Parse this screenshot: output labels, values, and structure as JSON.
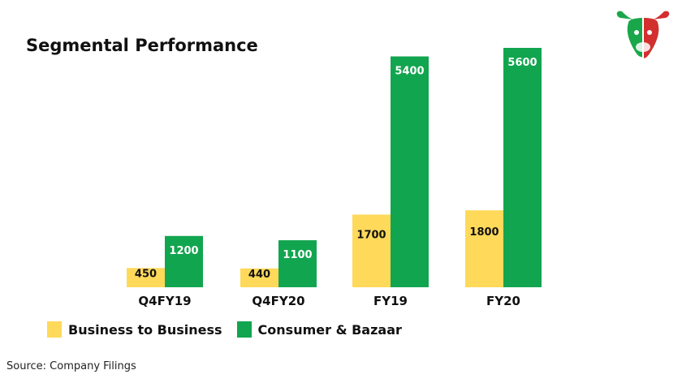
{
  "title": "Segmental Performance",
  "source": "Source: Company Filings",
  "logo": {
    "icon": "bull-head-logo-icon",
    "colors": [
      "#d32f2f",
      "#1aa64a"
    ]
  },
  "chart_data": {
    "type": "bar",
    "title": "Segmental Performance",
    "categories": [
      "Q4FY19",
      "Q4FY20",
      "FY19",
      "FY20"
    ],
    "series": [
      {
        "name": "Business to Business",
        "values": [
          450,
          440,
          1700,
          1800
        ],
        "color": "#ffd95a"
      },
      {
        "name": "Consumer & Bazaar",
        "values": [
          1200,
          1100,
          5400,
          5600
        ],
        "color": "#12a54f"
      }
    ],
    "ylim": [
      0,
      5600
    ],
    "grid": false,
    "legend": "bottom-left",
    "data_labels": true
  }
}
